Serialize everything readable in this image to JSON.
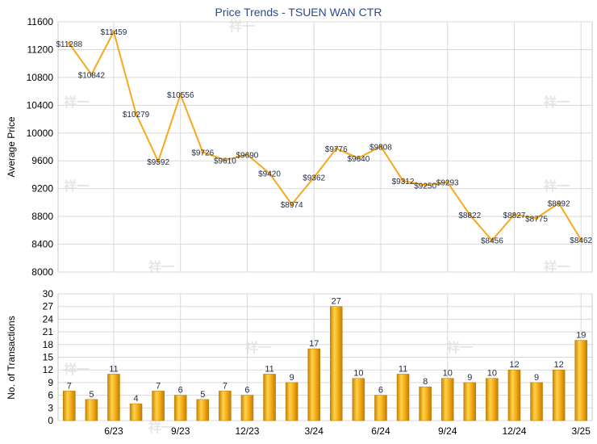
{
  "chart_data": [
    {
      "type": "line",
      "title": "Price Trends - TSUEN WAN CTR",
      "ylabel": "Average Price",
      "ylim": [
        8000,
        11600
      ],
      "yticks": [
        "8000",
        "8400",
        "8800",
        "9200",
        "9600",
        "10000",
        "10400",
        "10800",
        "11200",
        "11600"
      ],
      "values": [
        11288,
        10842,
        11459,
        10279,
        9592,
        10556,
        9726,
        9610,
        9690,
        9420,
        8974,
        9362,
        9776,
        9640,
        9808,
        9312,
        9250,
        9293,
        8822,
        8456,
        8827,
        8775,
        8992,
        8462
      ],
      "point_labels": [
        "$11288",
        "$10842",
        "$11459",
        "$10279",
        "$9592",
        "$10556",
        "$9726",
        "$9610",
        "$9690",
        "$9420",
        "$8974",
        "$9362",
        "$9776",
        "$9640",
        "$9808",
        "$9312",
        "$9250",
        "$9293",
        "$8822",
        "$8456",
        "$8827",
        "$8775",
        "$8992",
        "$8462"
      ],
      "color": "#f7a81b",
      "grid": true
    },
    {
      "type": "bar",
      "ylabel": "No. of Transactions",
      "ylim": [
        0,
        30
      ],
      "yticks": [
        "0",
        "3",
        "6",
        "9",
        "12",
        "15",
        "18",
        "21",
        "24",
        "27",
        "30"
      ],
      "values": [
        7,
        5,
        11,
        4,
        7,
        6,
        5,
        7,
        6,
        11,
        9,
        17,
        27,
        10,
        6,
        11,
        8,
        10,
        9,
        10,
        12,
        9,
        12,
        19
      ],
      "xtick_labels": [
        {
          "label": "6/23",
          "index": 2
        },
        {
          "label": "9/23",
          "index": 5
        },
        {
          "label": "12/23",
          "index": 8
        },
        {
          "label": "3/24",
          "index": 11
        },
        {
          "label": "6/24",
          "index": 14
        },
        {
          "label": "9/24",
          "index": 17
        },
        {
          "label": "12/24",
          "index": 20
        },
        {
          "label": "3/25",
          "index": 23
        }
      ],
      "color": "#f2a81d",
      "grid": true
    }
  ],
  "watermark_text": "祥一"
}
